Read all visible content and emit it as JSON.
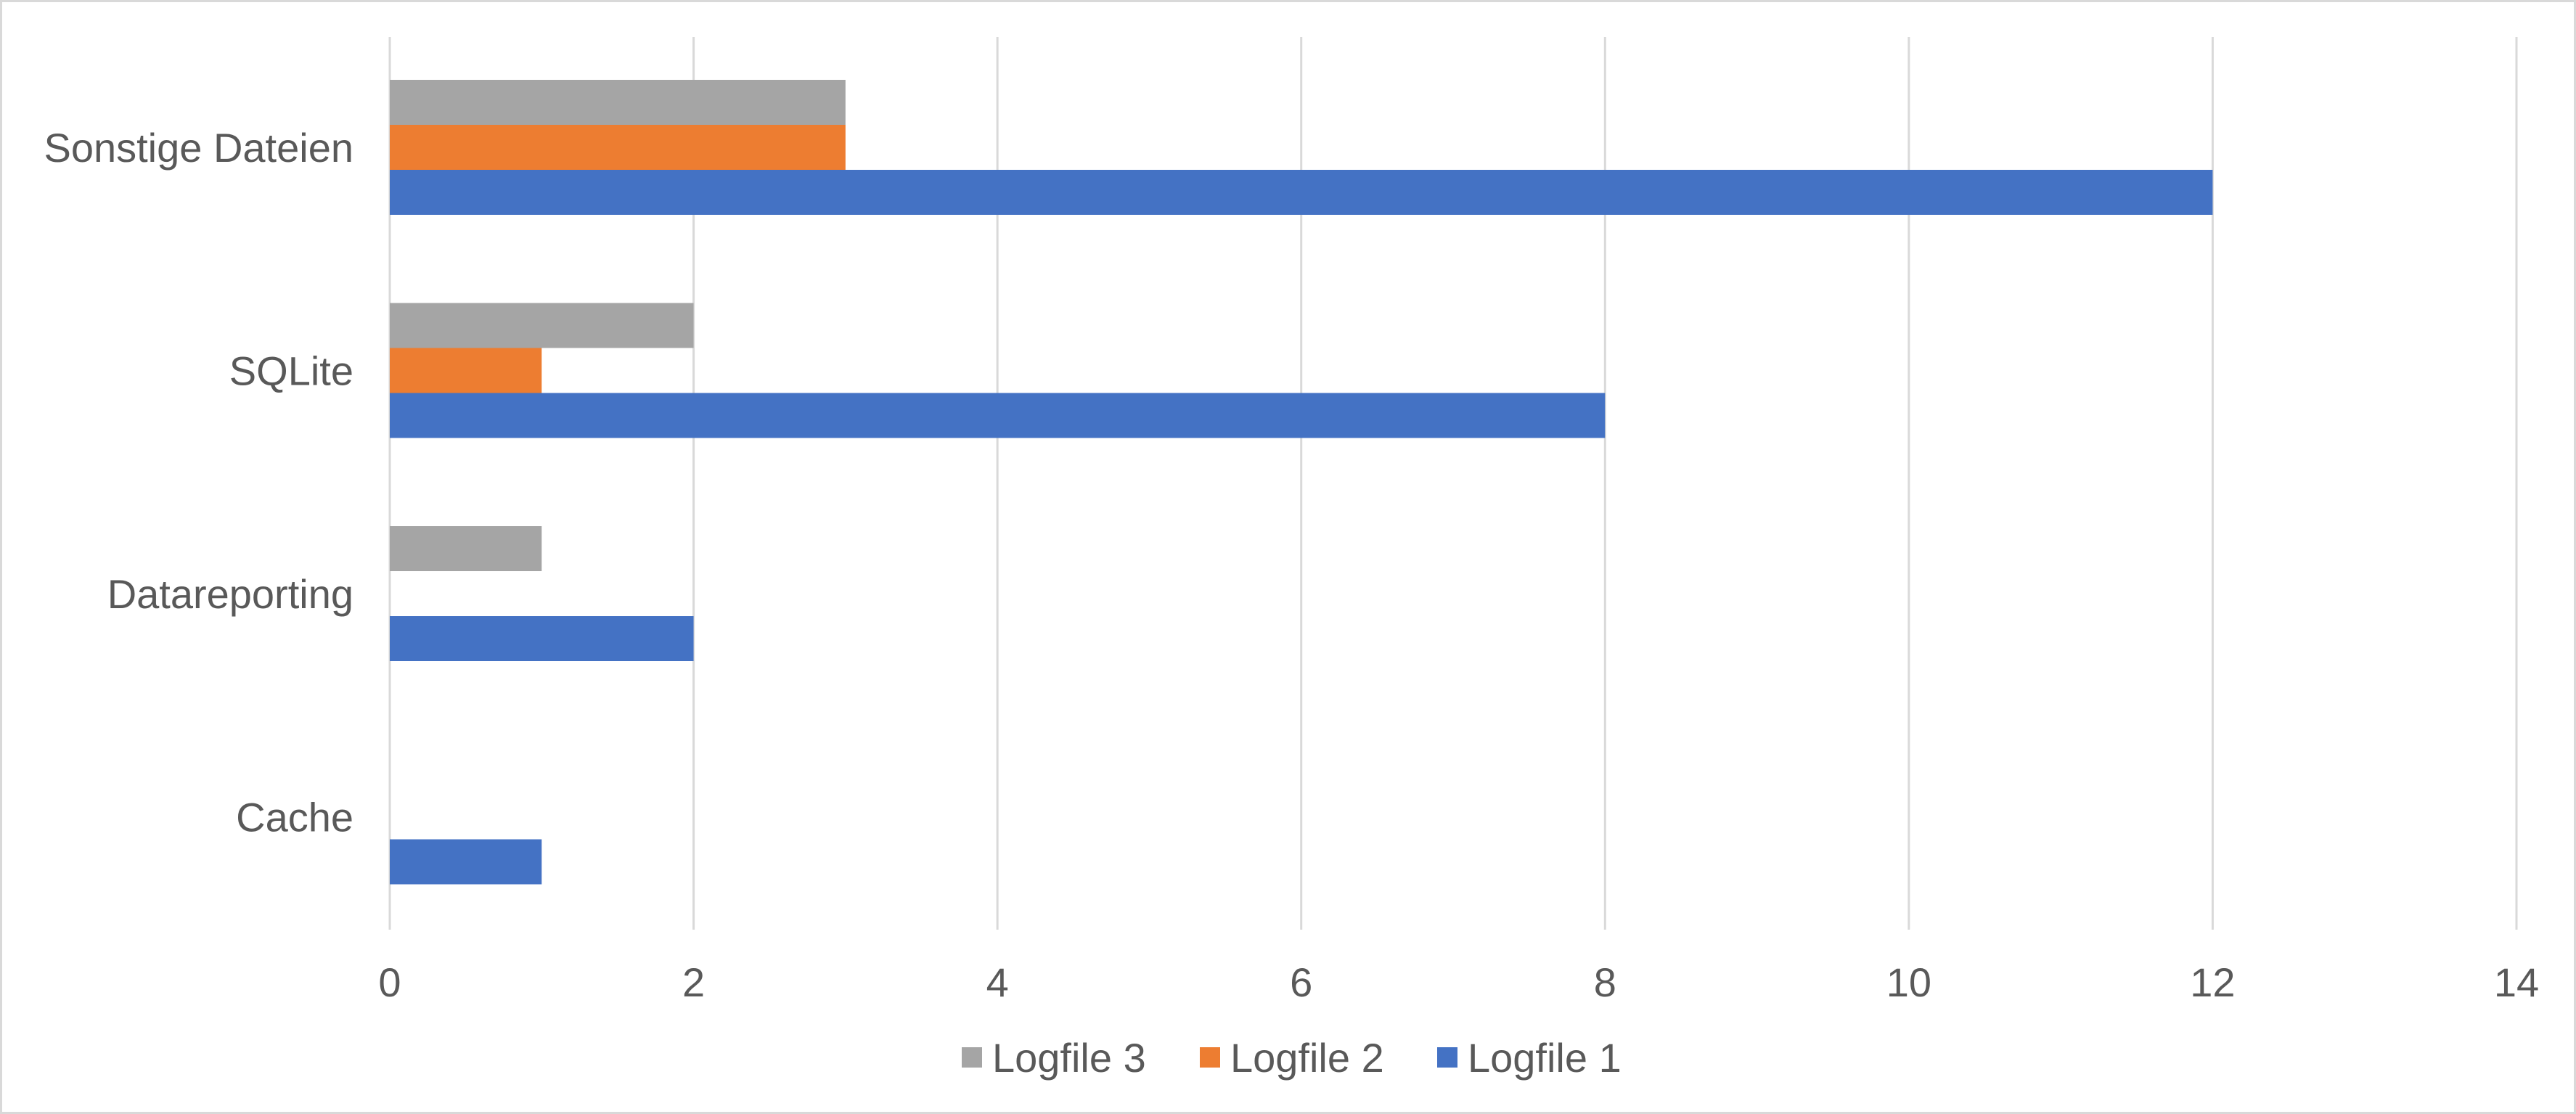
{
  "chart_data": {
    "type": "bar",
    "orientation": "horizontal",
    "categories": [
      "Sonstige Dateien",
      "SQLite",
      "Datareporting",
      "Cache"
    ],
    "series": [
      {
        "name": "Logfile 3",
        "color": "#a5a5a5",
        "values": [
          3,
          2,
          1,
          0
        ]
      },
      {
        "name": "Logfile 2",
        "color": "#ed7d31",
        "values": [
          3,
          1,
          0,
          0
        ]
      },
      {
        "name": "Logfile 1",
        "color": "#4472c4",
        "values": [
          12,
          8,
          2,
          1
        ]
      }
    ],
    "xlim": [
      0,
      14
    ],
    "xticks": [
      0,
      2,
      4,
      6,
      8,
      10,
      12,
      14
    ],
    "grid": "vertical",
    "legend": "bottom-center",
    "title": "",
    "xlabel": "",
    "ylabel": ""
  }
}
